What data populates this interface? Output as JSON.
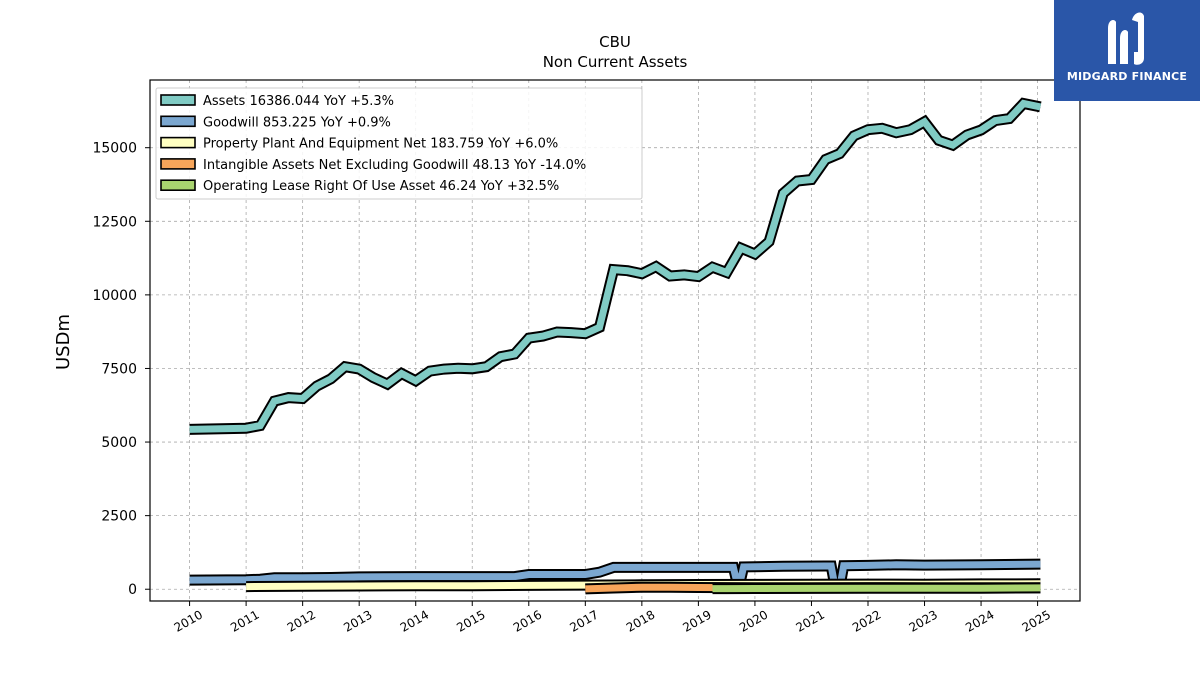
{
  "brand": {
    "name": "MIDGARD FINANCE",
    "color": "#2a56a8",
    "icon": "midgard-logo-icon"
  },
  "chart_data": {
    "type": "line",
    "title": "CBU",
    "subtitle": "Non Current  Assets",
    "xlabel": "",
    "ylabel": "USDm",
    "xlim": [
      2009.3,
      2025.75
    ],
    "ylim": [
      -400,
      17300
    ],
    "yticks": [
      0,
      2500,
      5000,
      7500,
      10000,
      12500,
      15000
    ],
    "ytick_labels": [
      "0",
      "2500",
      "5000",
      "7500",
      "10000",
      "12500",
      "15000"
    ],
    "xticks": [
      2010,
      2011,
      2012,
      2013,
      2014,
      2015,
      2016,
      2017,
      2018,
      2019,
      2020,
      2021,
      2022,
      2023,
      2024,
      2025
    ],
    "xtick_labels": [
      "2010",
      "2011",
      "2012",
      "2013",
      "2014",
      "2015",
      "2016",
      "2017",
      "2018",
      "2019",
      "2020",
      "2021",
      "2022",
      "2023",
      "2024",
      "2025"
    ],
    "grid": true,
    "legend_position": "top-left",
    "series": [
      {
        "name": "Assets  16386.044 YoY +5.3%",
        "color": "#80cbc4",
        "points": [
          [
            2010.0,
            5430
          ],
          [
            2011.0,
            5470
          ],
          [
            2011.25,
            5560
          ],
          [
            2011.5,
            6390
          ],
          [
            2011.75,
            6510
          ],
          [
            2012.0,
            6480
          ],
          [
            2012.25,
            6900
          ],
          [
            2012.5,
            7150
          ],
          [
            2012.75,
            7560
          ],
          [
            2013.0,
            7480
          ],
          [
            2013.25,
            7190
          ],
          [
            2013.5,
            6970
          ],
          [
            2013.75,
            7330
          ],
          [
            2014.0,
            7080
          ],
          [
            2014.25,
            7410
          ],
          [
            2014.5,
            7480
          ],
          [
            2014.75,
            7510
          ],
          [
            2015.0,
            7490
          ],
          [
            2015.25,
            7560
          ],
          [
            2015.5,
            7900
          ],
          [
            2015.75,
            7990
          ],
          [
            2016.0,
            8530
          ],
          [
            2016.25,
            8600
          ],
          [
            2016.5,
            8740
          ],
          [
            2016.75,
            8720
          ],
          [
            2017.0,
            8680
          ],
          [
            2017.25,
            8900
          ],
          [
            2017.5,
            10860
          ],
          [
            2017.75,
            10820
          ],
          [
            2018.0,
            10720
          ],
          [
            2018.25,
            10960
          ],
          [
            2018.5,
            10640
          ],
          [
            2018.75,
            10680
          ],
          [
            2019.0,
            10620
          ],
          [
            2019.25,
            10940
          ],
          [
            2019.5,
            10760
          ],
          [
            2019.75,
            11590
          ],
          [
            2020.0,
            11390
          ],
          [
            2020.25,
            11810
          ],
          [
            2020.5,
            13450
          ],
          [
            2020.75,
            13870
          ],
          [
            2021.0,
            13920
          ],
          [
            2021.25,
            14600
          ],
          [
            2021.5,
            14800
          ],
          [
            2021.75,
            15400
          ],
          [
            2022.0,
            15610
          ],
          [
            2022.25,
            15660
          ],
          [
            2022.5,
            15510
          ],
          [
            2022.75,
            15610
          ],
          [
            2023.0,
            15880
          ],
          [
            2023.25,
            15250
          ],
          [
            2023.5,
            15090
          ],
          [
            2023.75,
            15430
          ],
          [
            2024.0,
            15600
          ],
          [
            2024.25,
            15920
          ],
          [
            2024.5,
            15990
          ],
          [
            2024.75,
            16500
          ],
          [
            2025.05,
            16386
          ]
        ]
      },
      {
        "name": "Goodwill  853.225 YoY +0.9%",
        "color": "#7ba7d0",
        "points": [
          [
            2010.0,
            310
          ],
          [
            2011.0,
            320
          ],
          [
            2011.25,
            340
          ],
          [
            2011.5,
            390
          ],
          [
            2012.0,
            390
          ],
          [
            2012.5,
            400
          ],
          [
            2013.0,
            420
          ],
          [
            2014.0,
            430
          ],
          [
            2015.0,
            430
          ],
          [
            2015.75,
            430
          ],
          [
            2016.0,
            500
          ],
          [
            2017.0,
            500
          ],
          [
            2017.25,
            580
          ],
          [
            2017.5,
            740
          ],
          [
            2019.0,
            740
          ],
          [
            2019.5,
            740
          ],
          [
            2019.62,
            740
          ],
          [
            2019.68,
            250
          ],
          [
            2019.74,
            250
          ],
          [
            2019.8,
            760
          ],
          [
            2020.5,
            780
          ],
          [
            2021.25,
            790
          ],
          [
            2021.35,
            790
          ],
          [
            2021.42,
            50
          ],
          [
            2021.5,
            50
          ],
          [
            2021.57,
            800
          ],
          [
            2022.0,
            810
          ],
          [
            2022.5,
            830
          ],
          [
            2023.0,
            820
          ],
          [
            2024.0,
            830
          ],
          [
            2025.05,
            853
          ]
        ]
      },
      {
        "name": "Property Plant And Equipment Net  183.759 YoY +6.0%",
        "color": "#ffffc2",
        "points": [
          [
            2011.0,
            90
          ],
          [
            2012.0,
            100
          ],
          [
            2013.0,
            110
          ],
          [
            2014.0,
            120
          ],
          [
            2015.0,
            120
          ],
          [
            2016.0,
            130
          ],
          [
            2017.0,
            140
          ],
          [
            2018.0,
            150
          ],
          [
            2019.0,
            160
          ],
          [
            2020.0,
            165
          ],
          [
            2021.0,
            170
          ],
          [
            2022.0,
            175
          ],
          [
            2023.0,
            170
          ],
          [
            2024.0,
            180
          ],
          [
            2025.05,
            184
          ]
        ]
      },
      {
        "name": "Intangible Assets Net Excluding Goodwill  48.13 YoY -14.0%",
        "color": "#f7a55a",
        "points": [
          [
            2017.0,
            10
          ],
          [
            2017.5,
            40
          ],
          [
            2018.0,
            70
          ],
          [
            2018.5,
            65
          ],
          [
            2019.0,
            60
          ],
          [
            2019.5,
            55
          ],
          [
            2020.0,
            52
          ],
          [
            2021.0,
            50
          ],
          [
            2022.0,
            55
          ],
          [
            2023.0,
            52
          ],
          [
            2024.0,
            50
          ],
          [
            2025.05,
            48
          ]
        ]
      },
      {
        "name": "Operating Lease Right Of Use Asset  46.24 YoY +32.5%",
        "color": "#a9d46f",
        "points": [
          [
            2019.25,
            20
          ],
          [
            2019.5,
            22
          ],
          [
            2020.0,
            25
          ],
          [
            2021.0,
            28
          ],
          [
            2022.0,
            30
          ],
          [
            2023.0,
            32
          ],
          [
            2024.0,
            35
          ],
          [
            2025.05,
            46
          ]
        ]
      }
    ]
  }
}
